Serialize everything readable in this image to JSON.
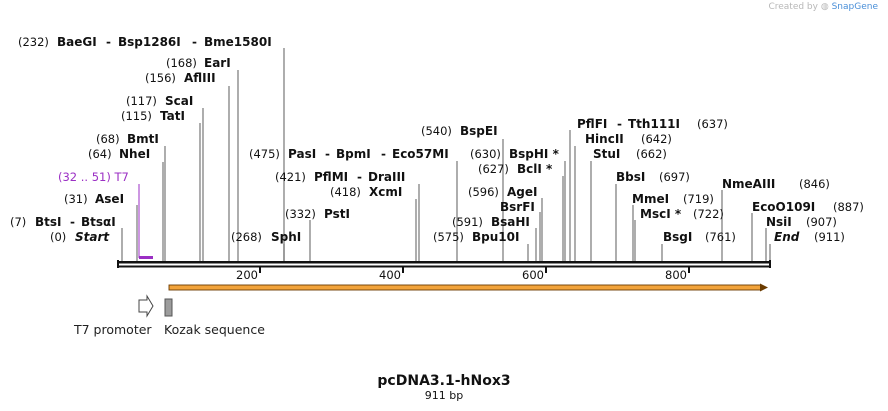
{
  "credit": {
    "prefix": "Created by",
    "brand": "SnapGene"
  },
  "map": {
    "title": "pcDNA3.1-hNox3",
    "length_label": "911 bp",
    "total_bp": 911
  },
  "sites": [
    {
      "pos_label": "(232)",
      "bp": 232,
      "names": [
        "BaeGI",
        "Bsp1286I",
        "Bme1580I"
      ]
    },
    {
      "pos_label": "(168)",
      "bp": 168,
      "names": [
        "EarI"
      ]
    },
    {
      "pos_label": "(156)",
      "bp": 156,
      "names": [
        "AflIII"
      ]
    },
    {
      "pos_label": "(117)",
      "bp": 117,
      "names": [
        "ScaI"
      ]
    },
    {
      "pos_label": "(115)",
      "bp": 115,
      "names": [
        "TatI"
      ]
    },
    {
      "pos_label": "(68)",
      "bp": 68,
      "names": [
        "BmtI"
      ]
    },
    {
      "pos_label": "(64)",
      "bp": 64,
      "names": [
        "NheI"
      ]
    },
    {
      "pos_label": "(31)",
      "bp": 31,
      "names": [
        "AseI"
      ]
    },
    {
      "pos_label": "(7)",
      "bp": 7,
      "names": [
        "BtsI",
        "BtsαI"
      ]
    },
    {
      "pos_label": "(0)",
      "bp": 0,
      "names": [
        "Start"
      ],
      "italic": true
    },
    {
      "pos_label": "(268)",
      "bp": 268,
      "names": [
        "SphI"
      ]
    },
    {
      "pos_label": "(332)",
      "bp": 332,
      "names": [
        "PstI"
      ]
    },
    {
      "pos_label": "(418)",
      "bp": 418,
      "names": [
        "XcmI"
      ]
    },
    {
      "pos_label": "(421)",
      "bp": 421,
      "names": [
        "PflMI",
        "DraIII"
      ]
    },
    {
      "pos_label": "(475)",
      "bp": 475,
      "names": [
        "PasI",
        "BpmI",
        "Eco57MI"
      ]
    },
    {
      "pos_label": "(540)",
      "bp": 540,
      "names": [
        "BspEI"
      ]
    },
    {
      "pos_label": "(630)",
      "bp": 630,
      "names": [
        "BspHI *"
      ]
    },
    {
      "pos_label": "(627)",
      "bp": 627,
      "names": [
        "BclI *"
      ]
    },
    {
      "pos_label": "(596)",
      "bp": 596,
      "names": [
        "AgeI"
      ]
    },
    {
      "pos_label": "",
      "bp": 590,
      "names": [
        "BsrFI"
      ]
    },
    {
      "pos_label": "(591)",
      "bp": 591,
      "names": [
        "BsaHI"
      ]
    },
    {
      "pos_label": "(575)",
      "bp": 575,
      "names": [
        "Bpu10I"
      ]
    },
    {
      "pos_label": "(637)",
      "bp": 637,
      "names": [
        "PflFI",
        "Tth111I"
      ]
    },
    {
      "pos_label": "(642)",
      "bp": 642,
      "names": [
        "HincII"
      ]
    },
    {
      "pos_label": "(662)",
      "bp": 662,
      "names": [
        "StuI"
      ]
    },
    {
      "pos_label": "(697)",
      "bp": 697,
      "names": [
        "BbsI"
      ]
    },
    {
      "pos_label": "(719)",
      "bp": 719,
      "names": [
        "MmeI"
      ]
    },
    {
      "pos_label": "(722)",
      "bp": 722,
      "names": [
        "MscI *"
      ]
    },
    {
      "pos_label": "(761)",
      "bp": 761,
      "names": [
        "BsgI"
      ]
    },
    {
      "pos_label": "(846)",
      "bp": 846,
      "names": [
        "NmeAIII"
      ]
    },
    {
      "pos_label": "(887)",
      "bp": 887,
      "names": [
        "EcoO109I"
      ]
    },
    {
      "pos_label": "(907)",
      "bp": 907,
      "names": [
        "NsiI"
      ]
    },
    {
      "pos_label": "(911)",
      "bp": 911,
      "names": [
        "End"
      ],
      "italic": true
    }
  ],
  "features": [
    {
      "label": "(32 .. 51)  T7",
      "range": [
        32,
        51
      ],
      "color": "#9b2fc4"
    }
  ],
  "ticks": [
    "200",
    "400",
    "600",
    "800"
  ],
  "legend": [
    {
      "label": "T7 promoter",
      "icon": "promoter-arrow-icon"
    },
    {
      "label": "Kozak sequence",
      "icon": "kozak-box-icon"
    }
  ],
  "colors": {
    "backbone": "#111111",
    "orf": "#f2a33a",
    "feature": "#9b2fc4"
  }
}
